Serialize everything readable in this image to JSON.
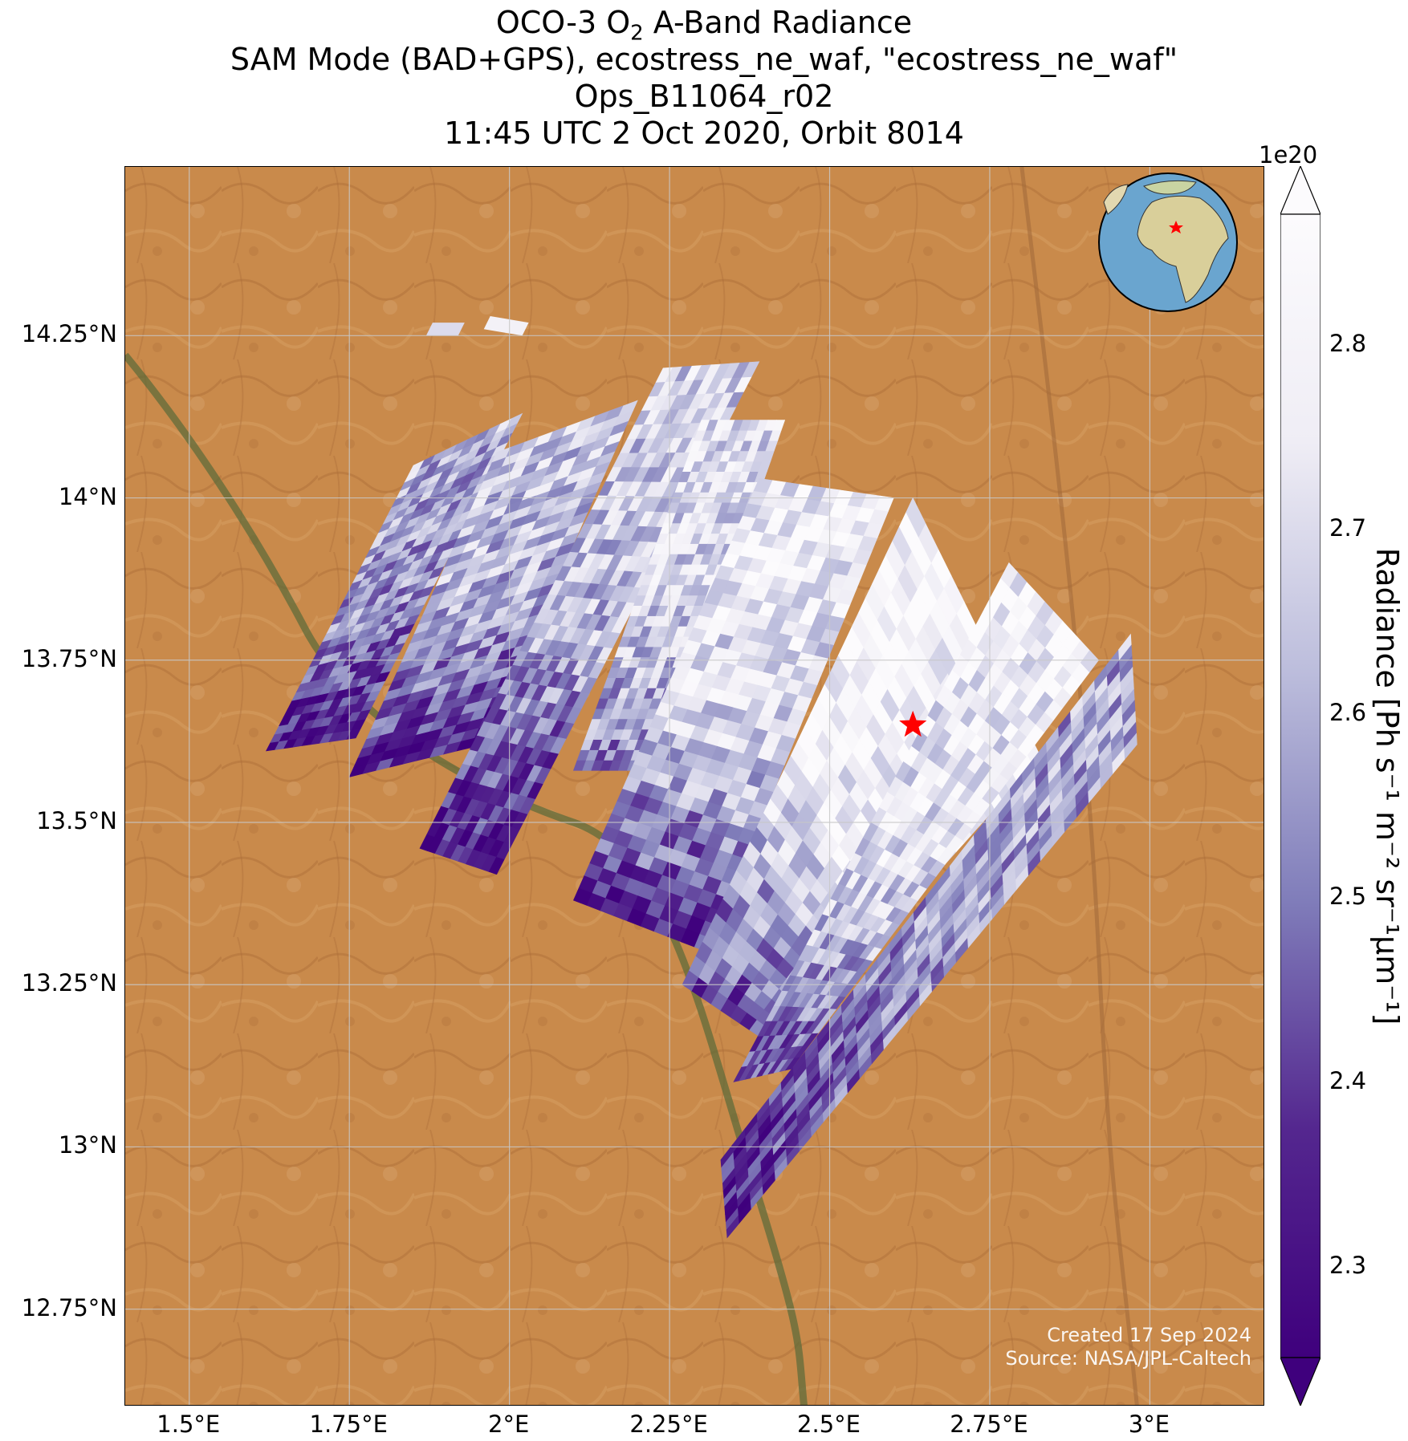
{
  "title": {
    "line1_prefix": "OCO-3 O",
    "line1_sub": "2",
    "line1_suffix": " A-Band Radiance",
    "line2": "SAM Mode (BAD+GPS), ecostress_ne_waf, \"ecostress_ne_waf\"",
    "line3": "Ops_B11064_r02",
    "line4": "11:45 UTC 2 Oct 2020, Orbit 8014"
  },
  "map": {
    "lon_range": [
      1.4,
      3.18
    ],
    "lat_range": [
      12.6,
      14.51
    ],
    "gridlines": true,
    "target_marker": {
      "type": "red-star",
      "lon": 2.63,
      "lat": 13.65
    },
    "lat_ticks": [
      {
        "value": 14.25,
        "label": "14.25°N"
      },
      {
        "value": 14.0,
        "label": "14°N"
      },
      {
        "value": 13.75,
        "label": "13.75°N"
      },
      {
        "value": 13.5,
        "label": "13.5°N"
      },
      {
        "value": 13.25,
        "label": "13.25°N"
      },
      {
        "value": 13.0,
        "label": "13°N"
      },
      {
        "value": 12.75,
        "label": "12.75°N"
      }
    ],
    "lon_ticks": [
      {
        "value": 1.5,
        "label": "1.5°E"
      },
      {
        "value": 1.75,
        "label": "1.75°E"
      },
      {
        "value": 2.0,
        "label": "2°E"
      },
      {
        "value": 2.25,
        "label": "2.25°E"
      },
      {
        "value": 2.5,
        "label": "2.5°E"
      },
      {
        "value": 2.75,
        "label": "2.75°E"
      },
      {
        "value": 3.0,
        "label": "3°E"
      }
    ],
    "colors": {
      "land": "#c98a4b",
      "river": "#5f6b3a",
      "star": "#ff0000"
    }
  },
  "chart_data": {
    "type": "heatmap",
    "variable": "O2 A-Band Radiance",
    "units_scale": "1e20",
    "colormap": "Purples_r",
    "vmin": 2.25,
    "vmax": 2.87,
    "swaths": [
      {
        "corners": [
          [
            1.62,
            13.61
          ],
          [
            1.85,
            14.05
          ],
          [
            2.02,
            14.13
          ],
          [
            1.76,
            13.63
          ]
        ],
        "mean": 2.55,
        "south_low": 2.3
      },
      {
        "corners": [
          [
            1.75,
            13.57
          ],
          [
            1.98,
            14.07
          ],
          [
            2.2,
            14.15
          ],
          [
            1.96,
            13.62
          ]
        ],
        "mean": 2.6,
        "south_low": 2.32
      },
      {
        "corners": [
          [
            1.86,
            13.46
          ],
          [
            2.24,
            14.2
          ],
          [
            2.39,
            14.21
          ],
          [
            1.98,
            13.42
          ]
        ],
        "mean": 2.62,
        "south_low": 2.3
      },
      {
        "corners": [
          [
            2.1,
            13.58
          ],
          [
            2.3,
            14.12
          ],
          [
            2.43,
            14.12
          ],
          [
            2.24,
            13.58
          ]
        ],
        "mean": 2.68,
        "south_low": 2.5
      },
      {
        "corners": [
          [
            2.1,
            13.38
          ],
          [
            2.39,
            14.03
          ],
          [
            2.6,
            14.0
          ],
          [
            2.31,
            13.3
          ]
        ],
        "mean": 2.7,
        "south_low": 2.35
      },
      {
        "corners": [
          [
            2.27,
            13.25
          ],
          [
            2.63,
            14.0
          ],
          [
            2.83,
            13.6
          ],
          [
            2.42,
            13.15
          ]
        ],
        "mean": 2.76,
        "south_low": 2.4
      },
      {
        "corners": [
          [
            2.35,
            13.1
          ],
          [
            2.78,
            13.9
          ],
          [
            2.92,
            13.75
          ],
          [
            2.44,
            13.12
          ]
        ],
        "mean": 2.72,
        "south_low": 2.42
      },
      {
        "corners": [
          [
            2.33,
            12.98
          ],
          [
            2.97,
            13.79
          ],
          [
            2.98,
            13.62
          ],
          [
            2.34,
            12.86
          ]
        ],
        "mean": 2.55,
        "south_low": 2.35
      }
    ],
    "small_patches": [
      {
        "corners": [
          [
            1.88,
            14.27
          ],
          [
            1.93,
            14.27
          ],
          [
            1.92,
            14.25
          ],
          [
            1.87,
            14.25
          ]
        ],
        "value": 2.7
      },
      {
        "corners": [
          [
            1.97,
            14.28
          ],
          [
            2.03,
            14.27
          ],
          [
            2.02,
            14.25
          ],
          [
            1.96,
            14.26
          ]
        ],
        "value": 2.78
      }
    ]
  },
  "colorbar": {
    "exponent": "1e20",
    "title": "Radiance [Ph s⁻¹ m⁻² sr⁻¹μm⁻¹]",
    "range": [
      2.25,
      2.87
    ],
    "extend": "both",
    "ticks": [
      {
        "value": 2.3,
        "label": "2.3"
      },
      {
        "value": 2.4,
        "label": "2.4"
      },
      {
        "value": 2.5,
        "label": "2.5"
      },
      {
        "value": 2.6,
        "label": "2.6"
      },
      {
        "value": 2.7,
        "label": "2.7"
      },
      {
        "value": 2.8,
        "label": "2.8"
      }
    ]
  },
  "inset_globe": {
    "marker": "red-star",
    "ocean_color": "#6aa5cf",
    "land_color": "#d9cf9a"
  },
  "credit": {
    "created": "Created 17 Sep 2024",
    "source": "Source: NASA/JPL-Caltech"
  }
}
